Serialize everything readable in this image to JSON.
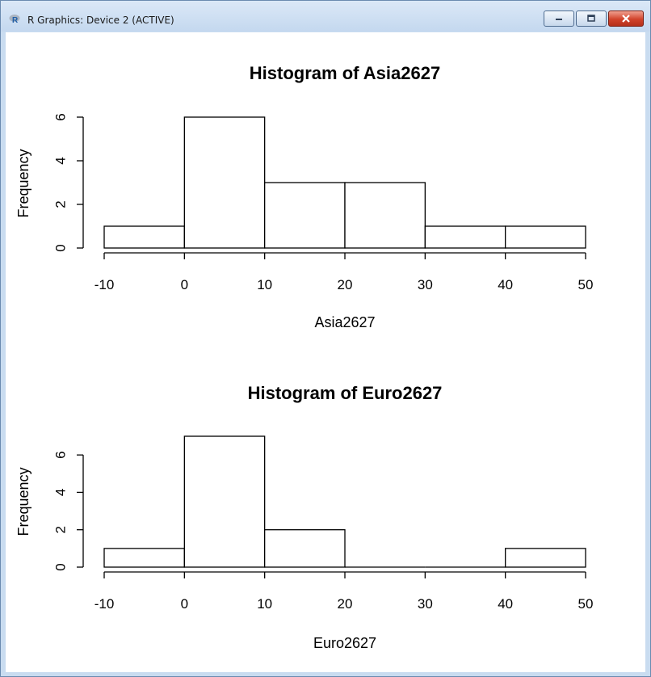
{
  "window": {
    "title": "R Graphics: Device 2 (ACTIVE)",
    "icon": "r-logo-icon",
    "controls": [
      "minimize-icon",
      "maximize-icon",
      "close-icon"
    ]
  },
  "chart_data": [
    {
      "type": "bar",
      "title": "Histogram of Asia2627",
      "xlabel": "Asia2627",
      "ylabel": "Frequency",
      "bins": [
        [
          -10,
          0
        ],
        [
          0,
          10
        ],
        [
          10,
          20
        ],
        [
          20,
          30
        ],
        [
          30,
          40
        ],
        [
          40,
          50
        ]
      ],
      "values": [
        1,
        6,
        3,
        3,
        1,
        1
      ],
      "xlim": [
        -10,
        50
      ],
      "ylim": [
        0,
        6
      ],
      "xticks": [
        -10,
        0,
        10,
        20,
        30,
        40,
        50
      ],
      "xtick_labels": [
        "-10",
        "0",
        "10",
        "20",
        "30",
        "40",
        "50"
      ],
      "yticks": [
        0,
        2,
        4,
        6
      ],
      "ytick_labels": [
        "0",
        "2",
        "4",
        "6"
      ],
      "grid": false
    },
    {
      "type": "bar",
      "title": "Histogram of Euro2627",
      "xlabel": "Euro2627",
      "ylabel": "Frequency",
      "bins": [
        [
          -10,
          0
        ],
        [
          0,
          10
        ],
        [
          10,
          20
        ],
        [
          20,
          30
        ],
        [
          30,
          40
        ],
        [
          40,
          50
        ]
      ],
      "values": [
        1,
        7,
        2,
        0,
        0,
        1
      ],
      "xlim": [
        -10,
        50
      ],
      "ylim": [
        0,
        7
      ],
      "xticks": [
        -10,
        0,
        10,
        20,
        30,
        40,
        50
      ],
      "xtick_labels": [
        "-10",
        "0",
        "10",
        "20",
        "30",
        "40",
        "50"
      ],
      "yticks": [
        0,
        2,
        4,
        6
      ],
      "ytick_labels": [
        "0",
        "2",
        "4",
        "6"
      ],
      "grid": false
    }
  ]
}
